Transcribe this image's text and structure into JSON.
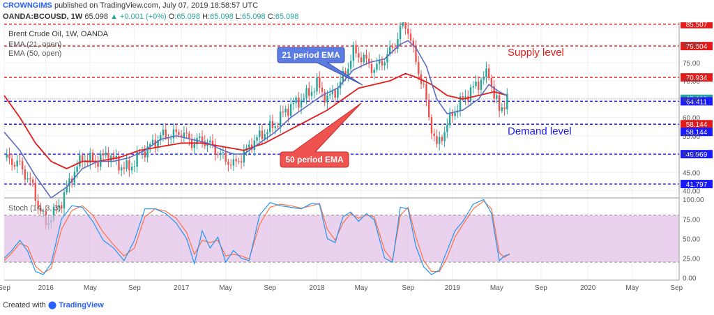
{
  "header": {
    "author": "CROWNGIMS",
    "published_text": "published on TradingView.com, July 07, 2019 18:58:57 UTC",
    "symbol": "OANDA:BCOUSD, 1W",
    "price": "65.098",
    "change": "▲ +0.001 (+0%)",
    "ohlc": {
      "o": "65.098",
      "h": "65.098",
      "l": "65.098",
      "c": "65.098"
    },
    "ohlc_labels": {
      "o": "O:",
      "h": "H:",
      "l": "L:",
      "c": "C:"
    }
  },
  "legend": {
    "title": "Brent Crude Oil, 1W, OANDA",
    "ema21": "EMA (21, open)",
    "ema50": "EMA (50, open)",
    "stoch": "Stoch (14, 3, 3)"
  },
  "annotations": {
    "ema21_callout": "21 period EMA",
    "ema50_callout": "50 period EMA",
    "supply": "Supply level",
    "demand": "Demand level"
  },
  "footer": {
    "created_with": "Created with",
    "brand": "TradingView"
  },
  "colors": {
    "up": "#26a69a",
    "down": "#ef5350",
    "ema21": "#5b6bbf",
    "ema50": "#e31b1b",
    "red_level": "#e31b1b",
    "blue_level": "#1a1aff",
    "stoch_k": "#2196f3",
    "stoch_d": "#ff7043",
    "stoch_band": "#e1bee7"
  },
  "chart_data": [
    {
      "type": "candlestick",
      "title": "Brent Crude Oil, 1W, OANDA",
      "y_axis_ticks": [
        40,
        45,
        50,
        55,
        60,
        65,
        70,
        75,
        80
      ],
      "ylim": [
        38,
        86
      ],
      "x_ticks": [
        "Sep",
        "2016",
        "May",
        "Sep",
        "2017",
        "May",
        "Sep",
        "2018",
        "May",
        "Sep",
        "2019",
        "May",
        "Sep",
        "2020",
        "May",
        "Sep"
      ],
      "x_tick_weeks": [
        0,
        16,
        33,
        50,
        68,
        85,
        102,
        120,
        137,
        155,
        172,
        189,
        206,
        224,
        241,
        258
      ],
      "price_levels": [
        {
          "value": 85.5,
          "label": "85.507",
          "style": "red"
        },
        {
          "value": 79.504,
          "label": "79.504",
          "style": "red"
        },
        {
          "value": 70.934,
          "label": "70.934",
          "style": "red"
        },
        {
          "value": 65.098,
          "label": "65.098",
          "style": "current"
        },
        {
          "value": 64.411,
          "label": "64.411",
          "style": "blue"
        },
        {
          "value": 58.144,
          "label": "58.144",
          "style": "red"
        },
        {
          "value": 58.144,
          "label": "58.144",
          "style": "blue"
        },
        {
          "value": 49.969,
          "label": "49.969",
          "style": "blue"
        },
        {
          "value": 41.797,
          "label": "41.797",
          "style": "blue"
        }
      ],
      "close_anchors": [
        [
          0,
          49
        ],
        [
          6,
          47
        ],
        [
          11,
          41
        ],
        [
          13,
          36
        ],
        [
          16,
          31
        ],
        [
          22,
          37
        ],
        [
          26,
          44
        ],
        [
          30,
          49
        ],
        [
          35,
          48
        ],
        [
          40,
          50
        ],
        [
          44,
          47
        ],
        [
          48,
          46
        ],
        [
          52,
          50
        ],
        [
          56,
          52
        ],
        [
          60,
          55
        ],
        [
          64,
          55
        ],
        [
          68,
          56
        ],
        [
          72,
          53
        ],
        [
          76,
          54
        ],
        [
          80,
          52
        ],
        [
          84,
          49
        ],
        [
          88,
          47
        ],
        [
          92,
          50
        ],
        [
          95,
          53
        ],
        [
          100,
          56
        ],
        [
          104,
          58
        ],
        [
          108,
          62
        ],
        [
          112,
          64
        ],
        [
          116,
          66
        ],
        [
          120,
          69
        ],
        [
          124,
          65
        ],
        [
          128,
          68
        ],
        [
          132,
          74
        ],
        [
          134,
          78
        ],
        [
          138,
          76
        ],
        [
          142,
          73
        ],
        [
          146,
          76
        ],
        [
          150,
          80
        ],
        [
          153,
          86
        ],
        [
          155,
          84
        ],
        [
          158,
          75
        ],
        [
          161,
          68
        ],
        [
          163,
          60
        ],
        [
          166,
          52
        ],
        [
          168,
          55
        ],
        [
          172,
          61
        ],
        [
          176,
          65
        ],
        [
          180,
          68
        ],
        [
          184,
          71
        ],
        [
          186,
          72
        ],
        [
          188,
          66
        ],
        [
          190,
          62
        ],
        [
          193,
          65
        ]
      ],
      "ema21_anchors": [
        [
          0,
          56
        ],
        [
          6,
          51
        ],
        [
          12,
          44
        ],
        [
          18,
          38
        ],
        [
          24,
          41
        ],
        [
          30,
          46
        ],
        [
          36,
          48
        ],
        [
          42,
          48
        ],
        [
          48,
          49
        ],
        [
          54,
          51
        ],
        [
          60,
          54
        ],
        [
          66,
          55
        ],
        [
          72,
          54
        ],
        [
          78,
          53
        ],
        [
          84,
          51
        ],
        [
          88,
          50
        ],
        [
          92,
          50
        ],
        [
          98,
          53
        ],
        [
          104,
          56
        ],
        [
          110,
          60
        ],
        [
          116,
          63
        ],
        [
          122,
          66
        ],
        [
          128,
          68
        ],
        [
          134,
          73
        ],
        [
          140,
          75
        ],
        [
          146,
          76
        ],
        [
          152,
          80
        ],
        [
          155,
          81
        ],
        [
          158,
          79
        ],
        [
          162,
          74
        ],
        [
          166,
          65
        ],
        [
          170,
          61
        ],
        [
          176,
          62
        ],
        [
          182,
          65
        ],
        [
          186,
          69
        ],
        [
          190,
          67
        ],
        [
          193,
          66
        ]
      ],
      "ema50_anchors": [
        [
          0,
          66
        ],
        [
          6,
          60
        ],
        [
          12,
          53
        ],
        [
          18,
          48
        ],
        [
          24,
          46
        ],
        [
          30,
          48
        ],
        [
          36,
          48
        ],
        [
          44,
          49
        ],
        [
          52,
          51
        ],
        [
          60,
          52
        ],
        [
          68,
          53
        ],
        [
          76,
          53
        ],
        [
          84,
          52
        ],
        [
          92,
          51
        ],
        [
          100,
          53
        ],
        [
          108,
          56
        ],
        [
          116,
          59
        ],
        [
          124,
          62
        ],
        [
          130,
          65
        ],
        [
          136,
          68
        ],
        [
          142,
          69
        ],
        [
          148,
          70
        ],
        [
          154,
          72
        ],
        [
          158,
          71
        ],
        [
          164,
          69
        ],
        [
          170,
          66
        ],
        [
          176,
          65
        ],
        [
          182,
          66
        ],
        [
          188,
          67
        ],
        [
          193,
          66
        ]
      ]
    },
    {
      "type": "line",
      "title": "Stoch (14, 3, 3)",
      "y_axis_ticks": [
        0,
        25,
        50,
        75,
        100
      ],
      "ylim": [
        -3,
        102
      ],
      "band": [
        20,
        80
      ],
      "k_anchors": [
        [
          0,
          25
        ],
        [
          3,
          35
        ],
        [
          6,
          48
        ],
        [
          9,
          34
        ],
        [
          12,
          8
        ],
        [
          15,
          4
        ],
        [
          18,
          18
        ],
        [
          22,
          75
        ],
        [
          26,
          92
        ],
        [
          30,
          90
        ],
        [
          34,
          72
        ],
        [
          38,
          48
        ],
        [
          42,
          38
        ],
        [
          46,
          22
        ],
        [
          50,
          48
        ],
        [
          54,
          88
        ],
        [
          58,
          88
        ],
        [
          62,
          82
        ],
        [
          66,
          70
        ],
        [
          70,
          50
        ],
        [
          73,
          18
        ],
        [
          76,
          60
        ],
        [
          79,
          38
        ],
        [
          82,
          52
        ],
        [
          85,
          20
        ],
        [
          88,
          35
        ],
        [
          91,
          25
        ],
        [
          94,
          22
        ],
        [
          98,
          80
        ],
        [
          102,
          96
        ],
        [
          106,
          92
        ],
        [
          110,
          90
        ],
        [
          114,
          88
        ],
        [
          118,
          95
        ],
        [
          121,
          94
        ],
        [
          124,
          50
        ],
        [
          127,
          45
        ],
        [
          130,
          78
        ],
        [
          133,
          84
        ],
        [
          136,
          72
        ],
        [
          139,
          82
        ],
        [
          142,
          74
        ],
        [
          146,
          25
        ],
        [
          149,
          20
        ],
        [
          152,
          90
        ],
        [
          155,
          88
        ],
        [
          158,
          40
        ],
        [
          161,
          14
        ],
        [
          164,
          4
        ],
        [
          167,
          10
        ],
        [
          170,
          35
        ],
        [
          173,
          60
        ],
        [
          176,
          72
        ],
        [
          180,
          94
        ],
        [
          184,
          100
        ],
        [
          187,
          82
        ],
        [
          190,
          22
        ],
        [
          192,
          28
        ],
        [
          194,
          30
        ]
      ],
      "d_anchors": [
        [
          0,
          22
        ],
        [
          3,
          32
        ],
        [
          6,
          44
        ],
        [
          9,
          40
        ],
        [
          12,
          15
        ],
        [
          15,
          6
        ],
        [
          18,
          12
        ],
        [
          22,
          62
        ],
        [
          26,
          86
        ],
        [
          30,
          92
        ],
        [
          34,
          80
        ],
        [
          38,
          58
        ],
        [
          42,
          42
        ],
        [
          46,
          28
        ],
        [
          50,
          38
        ],
        [
          54,
          78
        ],
        [
          58,
          88
        ],
        [
          62,
          85
        ],
        [
          66,
          76
        ],
        [
          70,
          58
        ],
        [
          73,
          30
        ],
        [
          76,
          48
        ],
        [
          79,
          45
        ],
        [
          82,
          48
        ],
        [
          85,
          28
        ],
        [
          88,
          30
        ],
        [
          91,
          28
        ],
        [
          94,
          24
        ],
        [
          98,
          68
        ],
        [
          102,
          90
        ],
        [
          106,
          94
        ],
        [
          110,
          92
        ],
        [
          114,
          89
        ],
        [
          118,
          92
        ],
        [
          121,
          95
        ],
        [
          124,
          62
        ],
        [
          127,
          48
        ],
        [
          130,
          70
        ],
        [
          133,
          82
        ],
        [
          136,
          76
        ],
        [
          139,
          80
        ],
        [
          142,
          78
        ],
        [
          146,
          35
        ],
        [
          149,
          22
        ],
        [
          152,
          80
        ],
        [
          155,
          90
        ],
        [
          158,
          52
        ],
        [
          161,
          22
        ],
        [
          164,
          8
        ],
        [
          167,
          8
        ],
        [
          170,
          26
        ],
        [
          173,
          52
        ],
        [
          176,
          68
        ],
        [
          180,
          88
        ],
        [
          184,
          98
        ],
        [
          187,
          88
        ],
        [
          190,
          32
        ],
        [
          192,
          26
        ],
        [
          194,
          31
        ]
      ]
    }
  ]
}
